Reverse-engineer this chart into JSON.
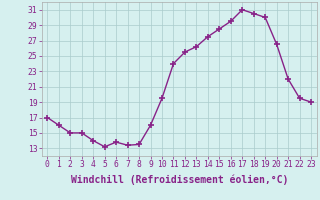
{
  "x": [
    0,
    1,
    2,
    3,
    4,
    5,
    6,
    7,
    8,
    9,
    10,
    11,
    12,
    13,
    14,
    15,
    16,
    17,
    18,
    19,
    20,
    21,
    22,
    23
  ],
  "y": [
    17.0,
    16.0,
    15.0,
    15.0,
    14.0,
    13.2,
    13.8,
    13.4,
    13.5,
    16.0,
    19.5,
    24.0,
    25.5,
    26.2,
    27.5,
    28.5,
    29.5,
    31.0,
    30.5,
    30.0,
    26.5,
    22.0,
    19.5,
    19.0
  ],
  "line_color": "#882288",
  "marker": "+",
  "markersize": 4,
  "markeredgewidth": 1.2,
  "linewidth": 1.0,
  "xlabel": "Windchill (Refroidissement éolien,°C)",
  "xlim": [
    -0.5,
    23.5
  ],
  "ylim": [
    12.0,
    32.0
  ],
  "yticks": [
    13,
    15,
    17,
    19,
    21,
    23,
    25,
    27,
    29,
    31
  ],
  "xtick_labels": [
    "0",
    "1",
    "2",
    "3",
    "4",
    "5",
    "6",
    "7",
    "8",
    "9",
    "10",
    "11",
    "12",
    "13",
    "14",
    "15",
    "16",
    "17",
    "18",
    "19",
    "20",
    "21",
    "22",
    "23"
  ],
  "bg_color": "#d6f0ef",
  "grid_color": "#aacccc",
  "tick_color": "#882288",
  "tick_fontsize": 5.8,
  "label_fontsize": 7.0,
  "spine_color": "#aaaaaa"
}
